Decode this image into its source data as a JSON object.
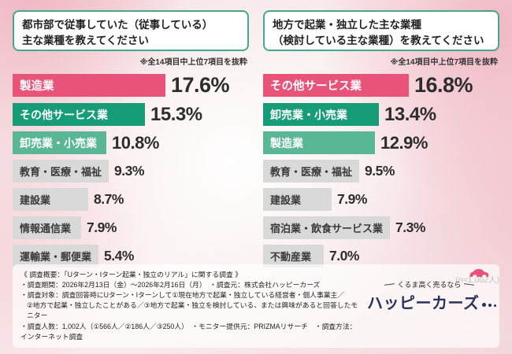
{
  "colors": {
    "accent_pink": "#e8537a",
    "green_dark": "#169c77",
    "green_mid": "#5ab795",
    "bar_gray": "#d9d9d9",
    "title_border": "#45a88c",
    "brand_navy": "#27335a"
  },
  "chart_data": [
    {
      "type": "bar",
      "orientation": "horizontal",
      "title": "都市部で従事していた（従事している）主な業種を教えてください",
      "title_lines": [
        "都市部で従事していた（従事している）",
        "主な業種を教えてください"
      ],
      "note": "※全14項目中上位7項目を抜粋",
      "value_unit": "%",
      "xlim": [
        0,
        20
      ],
      "categories": [
        "製造業",
        "その他サービス業",
        "卸売業・小売業",
        "教育・医療・福祉",
        "建設業",
        "情報通信業",
        "運輸業・郵便業"
      ],
      "values": [
        17.6,
        15.3,
        10.8,
        9.3,
        8.7,
        7.9,
        5.4
      ],
      "items": [
        {
          "label": "製造業",
          "value": 17.6,
          "display": "17.6%",
          "color": "#e8537a",
          "text_color": "#ffffff"
        },
        {
          "label": "その他サービス業",
          "value": 15.3,
          "display": "15.3%",
          "color": "#169c77",
          "text_color": "#ffffff"
        },
        {
          "label": "卸売業・小売業",
          "value": 10.8,
          "display": "10.8%",
          "color": "#5ab795",
          "text_color": "#ffffff"
        },
        {
          "label": "教育・医療・福祉",
          "value": 9.3,
          "display": "9.3%",
          "color": "#d9d9d9",
          "text_color": "#3a3a3a"
        },
        {
          "label": "建設業",
          "value": 8.7,
          "display": "8.7%",
          "color": "#d9d9d9",
          "text_color": "#3a3a3a"
        },
        {
          "label": "情報通信業",
          "value": 7.9,
          "display": "7.9%",
          "color": "#d9d9d9",
          "text_color": "#3a3a3a"
        },
        {
          "label": "運輸業・郵便業",
          "value": 5.4,
          "display": "5.4%",
          "color": "#d9d9d9",
          "text_color": "#3a3a3a"
        }
      ]
    },
    {
      "type": "bar",
      "orientation": "horizontal",
      "title": "地方で起業・独立した主な業種（検討している主な業種）を教えてください",
      "title_lines": [
        "地方で起業・独立した主な業種",
        "（検討している主な業種）を教えてください"
      ],
      "note": "※全14項目中上位7項目を抜粋",
      "value_unit": "%",
      "xlim": [
        0,
        20
      ],
      "categories": [
        "その他サービス業",
        "卸売業・小売業",
        "製造業",
        "教育・医療・福祉",
        "建設業",
        "宿泊業・飲食サービス業",
        "不動産業"
      ],
      "values": [
        16.8,
        13.4,
        12.9,
        9.5,
        7.9,
        7.3,
        7.0
      ],
      "items": [
        {
          "label": "その他サービス業",
          "value": 16.8,
          "display": "16.8%",
          "color": "#e8537a",
          "text_color": "#ffffff"
        },
        {
          "label": "卸売業・小売業",
          "value": 13.4,
          "display": "13.4%",
          "color": "#169c77",
          "text_color": "#ffffff"
        },
        {
          "label": "製造業",
          "value": 12.9,
          "display": "12.9%",
          "color": "#5ab795",
          "text_color": "#ffffff"
        },
        {
          "label": "教育・医療・福祉",
          "value": 9.5,
          "display": "9.5%",
          "color": "#d9d9d9",
          "text_color": "#3a3a3a"
        },
        {
          "label": "建設業",
          "value": 7.9,
          "display": "7.9%",
          "color": "#d9d9d9",
          "text_color": "#3a3a3a"
        },
        {
          "label": "宿泊業・飲食サービス業",
          "value": 7.3,
          "display": "7.3%",
          "color": "#d9d9d9",
          "text_color": "#3a3a3a"
        },
        {
          "label": "不動産業",
          "value": 7.0,
          "display": "7.0%",
          "color": "#d9d9d9",
          "text_color": "#3a3a3a"
        }
      ]
    }
  ],
  "sample_note": "(n=1,002人)",
  "footer": {
    "lines": [
      "《 調査概要：「Uターン・Iターン起業・独立のリアル」に関する調査 》",
      "・調査期間：2026年2月13日（金）～2026年2月16日（月）　・調査元：株式会社ハッピーカーズ",
      "・調査対象：調査回答時にUターン・Iターンして①現在地方で起業・独立している経営者・個人事業主／",
      "②地方で起業・独立したことがある／③地方で起業・独立を検討している、または興味があると回答したモニター",
      "・調査人数：1,002人（①566人／②186人／③250人）　・モニター提供元：PRIZMAリサーチ　・調査方法：インターネット調査"
    ]
  },
  "logo": {
    "tagline": "くるま高く売るなら",
    "brand": "ハッピーカーズ"
  }
}
